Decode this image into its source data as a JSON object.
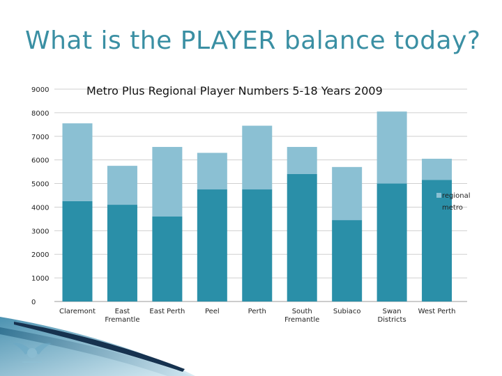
{
  "slide": {
    "title": "What is the PLAYER balance today?"
  },
  "colors": {
    "title": "#3a8fa3",
    "metro": "#2a8fa8",
    "regional": "#8bc0d3",
    "footer_dark": "#1a3b5c",
    "footer_light": "#c9e3ef"
  },
  "chart_data": {
    "type": "bar",
    "stacked": true,
    "title": "Metro Plus Regional Player Numbers 5-18 Years 2009",
    "xlabel": "",
    "ylabel": "",
    "ylim": [
      0,
      9000
    ],
    "yticks": [
      "9000",
      "8000",
      "7000",
      "6000",
      "5000",
      "4000",
      "3000",
      "2000",
      "1000",
      "0"
    ],
    "grid": "horizontal",
    "legend_position": "right",
    "categories": [
      "Claremont",
      "East Fremantle",
      "East Perth",
      "Peel",
      "Perth",
      "South Fremantle",
      "Subiaco",
      "Swan Districts",
      "West Perth"
    ],
    "category_lines": [
      [
        "Claremont"
      ],
      [
        "East",
        "Fremantle"
      ],
      [
        "East Perth"
      ],
      [
        "Peel"
      ],
      [
        "Perth"
      ],
      [
        "South",
        "Fremantle"
      ],
      [
        "Subiaco"
      ],
      [
        "Swan",
        "Districts"
      ],
      [
        "West Perth"
      ]
    ],
    "series": [
      {
        "name": "metro",
        "values": [
          4250,
          4100,
          3600,
          4750,
          4750,
          5400,
          3450,
          5000,
          5150
        ]
      },
      {
        "name": "regional",
        "values": [
          3300,
          1650,
          2950,
          1550,
          2700,
          1150,
          2250,
          3050,
          900
        ]
      }
    ],
    "legend": [
      "regional",
      "metro"
    ]
  }
}
